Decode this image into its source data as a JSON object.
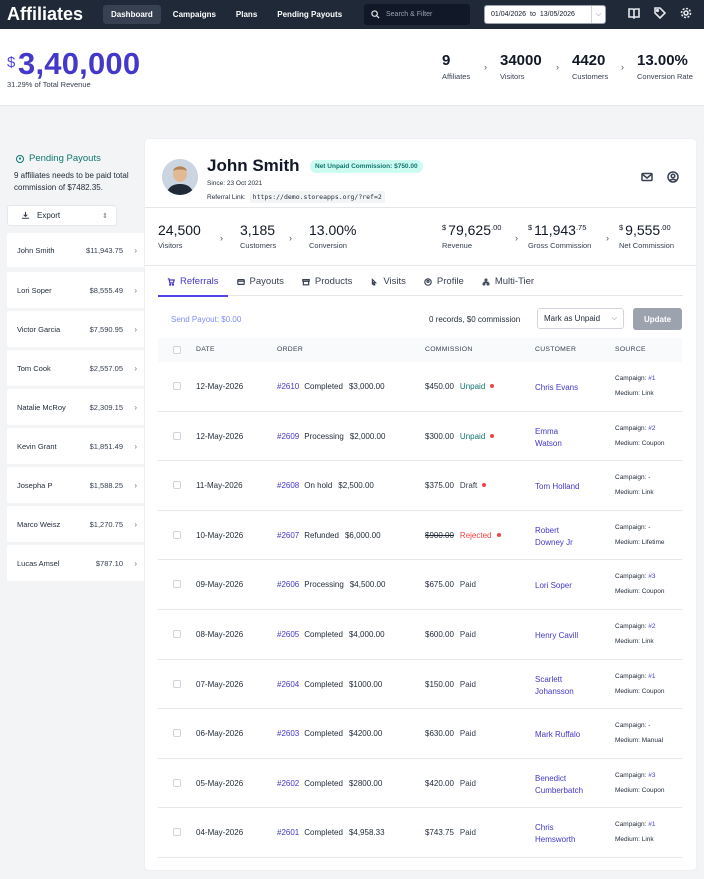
{
  "app": {
    "title": "Affiliates"
  },
  "nav": [
    {
      "label": "Dashboard",
      "active": true
    },
    {
      "label": "Campaigns",
      "active": false
    },
    {
      "label": "Plans",
      "active": false
    },
    {
      "label": "Pending Payouts",
      "active": false
    }
  ],
  "search": {
    "placeholder": "Search & Filter"
  },
  "date_range": {
    "from": "01/04/2026",
    "sep": "to",
    "to": "13/05/2026"
  },
  "summary": {
    "currency": "$",
    "revenue": "3,40,000",
    "revenue_sub": "31.29% of Total Revenue",
    "stats": [
      {
        "value": "9",
        "label": "Affiliates"
      },
      {
        "value": "34000",
        "label": "Visitors"
      },
      {
        "value": "4420",
        "label": "Customers"
      },
      {
        "value": "13.00%",
        "label": "Conversion Rate"
      }
    ]
  },
  "sidebar": {
    "title": "Pending Payouts",
    "description": "9 affiliates needs to be paid total commission of $7482.35.",
    "export_label": "Export",
    "affiliates": [
      {
        "name": "John Smith",
        "amount": "$11,943.75"
      },
      {
        "name": "Lori Soper",
        "amount": "$8,555.49"
      },
      {
        "name": "Victor Garcia",
        "amount": "$7,590.95"
      },
      {
        "name": "Tom Cook",
        "amount": "$2,557.05"
      },
      {
        "name": "Natalie McRoy",
        "amount": "$2,309.15"
      },
      {
        "name": "Kevin Grant",
        "amount": "$1,851.49"
      },
      {
        "name": "Josepha P",
        "amount": "$1,588.25"
      },
      {
        "name": "Marco Weisz",
        "amount": "$1,270.75"
      },
      {
        "name": "Lucas Amsel",
        "amount": "$787.10"
      }
    ]
  },
  "profile": {
    "name": "John Smith",
    "badge": "Net Unpaid Commission: $750.00",
    "since": "Since: 23 Oct 2021",
    "ref_label": "Referral Link:",
    "ref_link": "https://demo.storeapps.org/?ref=2"
  },
  "kpis": [
    {
      "value": "24,500",
      "label": "Visitors"
    },
    {
      "value": "3,185",
      "label": "Customers"
    },
    {
      "value": "13.00%",
      "label": "Conversion"
    },
    {
      "currency": "$",
      "value": "79,625",
      "decimal": ".00",
      "label": "Revenue"
    },
    {
      "currency": "$",
      "value": "11,943",
      "decimal": ".75",
      "label": "Gross Commission"
    },
    {
      "currency": "$",
      "value": "9,555",
      "decimal": ".00",
      "label": "Net Commission"
    }
  ],
  "tabs": [
    {
      "label": "Referrals",
      "icon": "cart-icon",
      "active": true
    },
    {
      "label": "Payouts",
      "icon": "card-icon",
      "active": false
    },
    {
      "label": "Products",
      "icon": "box-icon",
      "active": false
    },
    {
      "label": "Visits",
      "icon": "pointer-icon",
      "active": false
    },
    {
      "label": "Profile",
      "icon": "user-circle-icon",
      "active": false
    },
    {
      "label": "Multi-Tier",
      "icon": "network-icon",
      "active": false
    }
  ],
  "toolbar": {
    "send_payout": "Send Payout: $0.00",
    "records": "0 records, $0 commission",
    "mark_select": "Mark as Unpaid",
    "update": "Update"
  },
  "table": {
    "headers": [
      "DATE",
      "ORDER",
      "COMMISSION",
      "CUSTOMER",
      "SOURCE"
    ],
    "rows": [
      {
        "date": "12-May-2026",
        "order": "#2610",
        "status": "Completed",
        "amount": "$3,000.00",
        "commission": "$450.00",
        "pay_status": "Unpaid",
        "customer": [
          "Chris Evans"
        ],
        "campaign_label": "Campaign:",
        "campaign": "#1",
        "medium": "Medium: Link"
      },
      {
        "date": "12-May-2026",
        "order": "#2609",
        "status": "Processing",
        "amount": "$2,000.00",
        "commission": "$300.00",
        "pay_status": "Unpaid",
        "customer": [
          "Emma",
          "Watson"
        ],
        "campaign_label": "Campaign:",
        "campaign": "#2",
        "medium": "Medium: Coupon"
      },
      {
        "date": "11-May-2026",
        "order": "#2608",
        "status": "On hold",
        "amount": "$2,500.00",
        "commission": "$375.00",
        "pay_status": "Draft",
        "customer": [
          "Tom Holland"
        ],
        "campaign_label": "Campaign:",
        "campaign": "-",
        "medium": "Medium: Link"
      },
      {
        "date": "10-May-2026",
        "order": "#2607",
        "status": "Refunded",
        "amount": "$6,000.00",
        "commission": "$900.00",
        "pay_status": "Rejected",
        "customer": [
          "Robert",
          "Downey Jr"
        ],
        "campaign_label": "Campaign:",
        "campaign": "-",
        "medium": "Medium: Lifetime"
      },
      {
        "date": "09-May-2026",
        "order": "#2606",
        "status": "Processing",
        "amount": "$4,500.00",
        "commission": "$675.00",
        "pay_status": "Paid",
        "customer": [
          "Lori Soper"
        ],
        "campaign_label": "Campaign:",
        "campaign": "#3",
        "medium": "Medium: Coupon"
      },
      {
        "date": "08-May-2026",
        "order": "#2605",
        "status": "Completed",
        "amount": "$4,000.00",
        "commission": "$600.00",
        "pay_status": "Paid",
        "customer": [
          "Henry Cavill"
        ],
        "campaign_label": "Campaign:",
        "campaign": "#2",
        "medium": "Medium: Link"
      },
      {
        "date": "07-May-2026",
        "order": "#2604",
        "status": "Completed",
        "amount": "$1000.00",
        "commission": "$150.00",
        "pay_status": "Paid",
        "customer": [
          "Scarlett",
          "Johansson"
        ],
        "campaign_label": "Campaign:",
        "campaign": "#1",
        "medium": "Medium: Coupon"
      },
      {
        "date": "06-May-2026",
        "order": "#2603",
        "status": "Completed",
        "amount": "$4200.00",
        "commission": "$630.00",
        "pay_status": "Paid",
        "customer": [
          "Mark Ruffalo"
        ],
        "campaign_label": "Campaign:",
        "campaign": "-",
        "medium": "Medium: Manual"
      },
      {
        "date": "05-May-2026",
        "order": "#2602",
        "status": "Completed",
        "amount": "$2800.00",
        "commission": "$420.00",
        "pay_status": "Paid",
        "customer": [
          "Benedict",
          "Cumberbatch"
        ],
        "campaign_label": "Campaign:",
        "campaign": "#3",
        "medium": "Medium: Coupon"
      },
      {
        "date": "04-May-2026",
        "order": "#2601",
        "status": "Completed",
        "amount": "$4,958.33",
        "commission": "$743.75",
        "pay_status": "Paid",
        "customer": [
          "Chris",
          "Hemsworth"
        ],
        "campaign_label": "Campaign:",
        "campaign": "#1",
        "medium": "Medium: Link"
      }
    ]
  },
  "colors": {
    "accent": "#4338ca",
    "unpaid": "#0f766e",
    "rejected": "#ef4444",
    "draft": "#374151"
  }
}
